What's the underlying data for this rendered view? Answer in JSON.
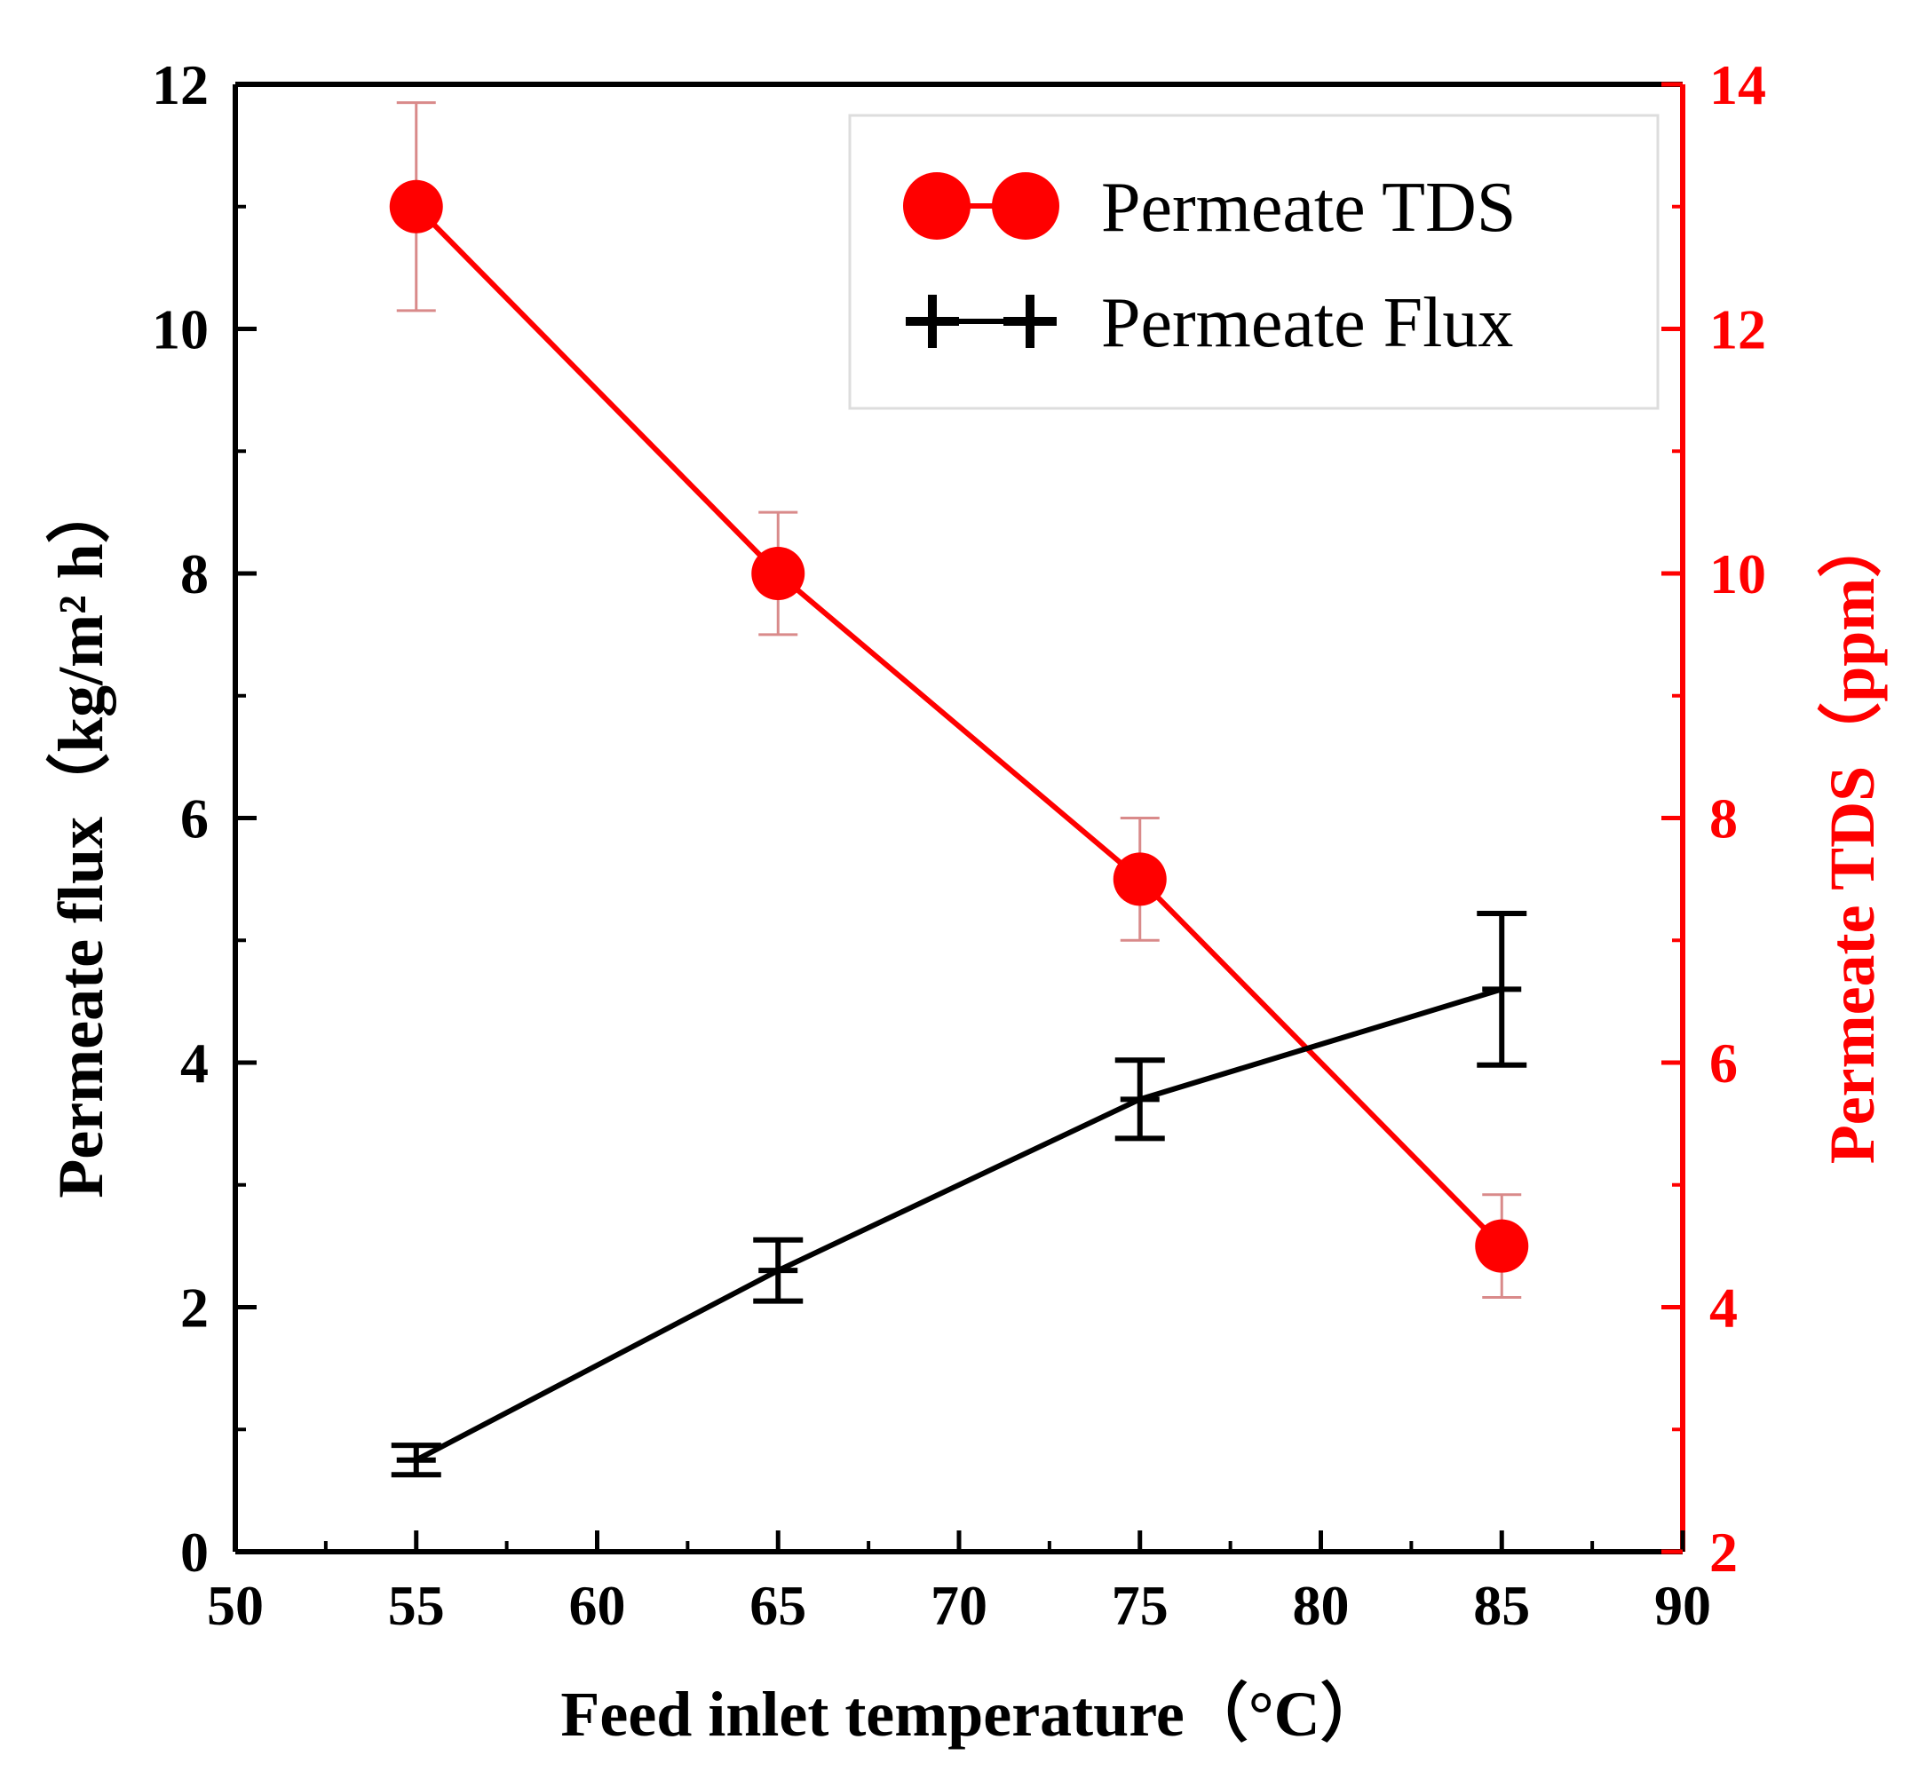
{
  "chart_data": {
    "type": "line",
    "title": "",
    "xlabel": "Feed inlet temperature（°C）",
    "ylabel": "Permeate flux（kg/m² h）",
    "y2label": "Permeate TDS（ppm）",
    "xlim": [
      50,
      90
    ],
    "ylim": [
      0,
      12
    ],
    "y2lim": [
      2,
      14
    ],
    "xticks": [
      "50",
      "55",
      "60",
      "65",
      "70",
      "75",
      "80",
      "85",
      "90"
    ],
    "yticks": [
      "0",
      "2",
      "4",
      "6",
      "8",
      "10",
      "12"
    ],
    "y2ticks": [
      "2",
      "4",
      "6",
      "8",
      "10",
      "12",
      "14"
    ],
    "legend_position": "top-right",
    "series": [
      {
        "name": "Permeate TDS",
        "axis": "right",
        "color": "#ff0000",
        "marker": "circle",
        "x": [
          55,
          65,
          75,
          85
        ],
        "values": [
          13.0,
          10.0,
          7.5,
          4.5
        ],
        "errors": [
          0.85,
          0.5,
          0.5,
          0.42
        ]
      },
      {
        "name": "Permeate Flux",
        "axis": "left",
        "color": "#000000",
        "marker": "plus",
        "x": [
          55,
          65,
          75,
          85
        ],
        "values": [
          0.75,
          2.3,
          3.7,
          4.6
        ],
        "errors": [
          0.12,
          0.25,
          0.32,
          0.62
        ]
      }
    ]
  }
}
